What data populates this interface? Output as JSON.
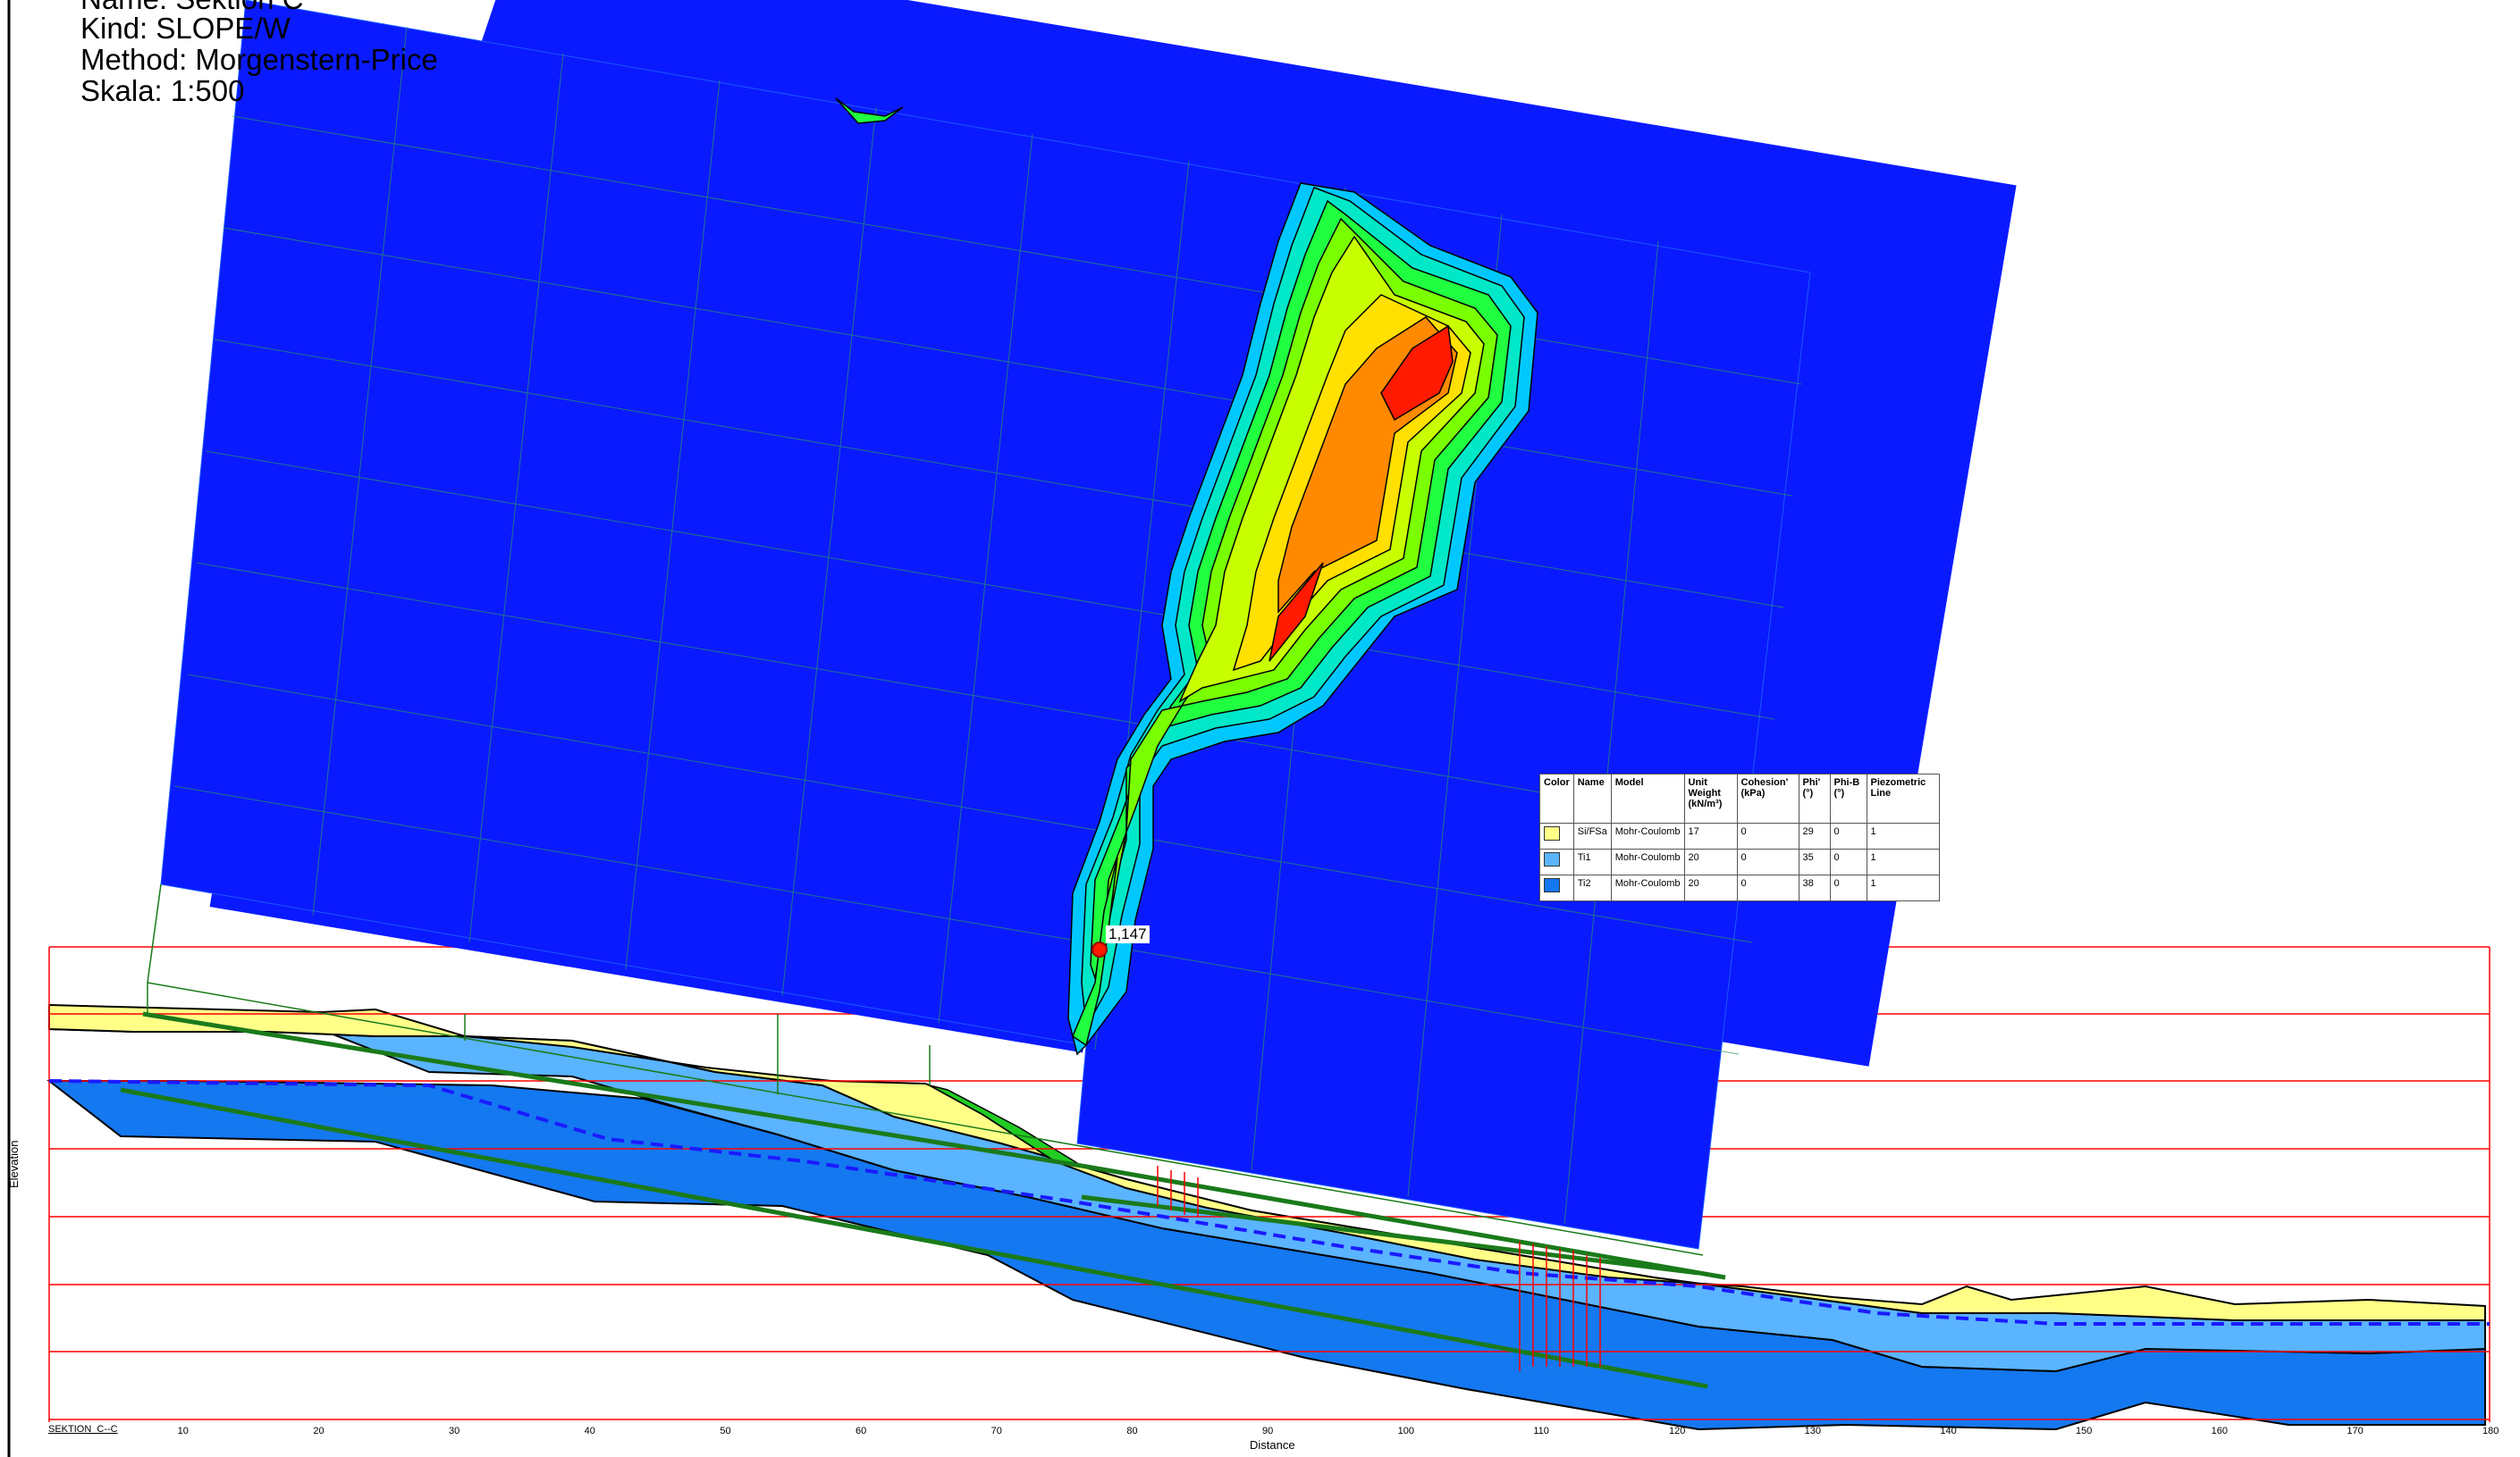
{
  "header": {
    "name": "Name: Sektion C",
    "kind": "Kind: SLOPE/W",
    "method": "Method: Morgenstern-Price",
    "scale": "Skala: 1:500"
  },
  "factor_of_safety": "1,147",
  "legend": {
    "headers": [
      "Color",
      "Name",
      "Model",
      "Unit Weight (kN/m³)",
      "Cohesion' (kPa)",
      "Phi' (°)",
      "Phi-B (°)",
      "Piezometric Line"
    ],
    "rows": [
      {
        "color": "#ffff88",
        "name": "Si/FSa",
        "model": "Mohr-Coulomb",
        "unit_weight": "17",
        "cohesion": "0",
        "phi": "29",
        "phi_b": "0",
        "piezo": "1"
      },
      {
        "color": "#5ab4ff",
        "name": "Ti1",
        "model": "Mohr-Coulomb",
        "unit_weight": "20",
        "cohesion": "0",
        "phi": "35",
        "phi_b": "0",
        "piezo": "1"
      },
      {
        "color": "#1478f0",
        "name": "Ti2",
        "model": "Mohr-Coulomb",
        "unit_weight": "20",
        "cohesion": "0",
        "phi": "38",
        "phi_b": "0",
        "piezo": "1"
      }
    ]
  },
  "axes": {
    "xlabel": "Distance",
    "ylabel": "Elevation",
    "x_ticks": [
      "10",
      "20",
      "30",
      "40",
      "50",
      "60",
      "70",
      "80",
      "90",
      "100",
      "110",
      "120",
      "130",
      "140",
      "150",
      "160",
      "170",
      "180"
    ],
    "section_label": "SEKTION_C--C"
  },
  "colors": {
    "grid_red": "#ff0000",
    "contour_blue": "#0a1aff",
    "piezometric": "#1a1aff",
    "slip_green": "#1a7a1a"
  }
}
